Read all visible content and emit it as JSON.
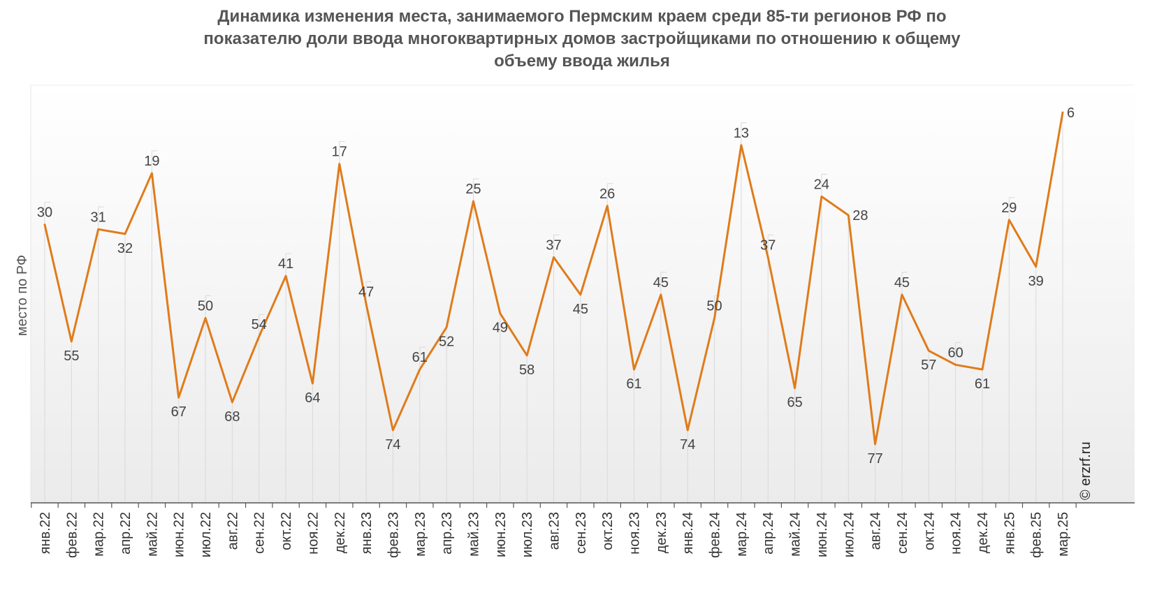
{
  "chart_data": {
    "type": "line",
    "title": [
      "Динамика изменения места, занимаемого Пермским краем среди 85-ти регионов РФ по",
      "показателю доли ввода многоквартирных домов застройщиками по отношению к общему",
      "объему ввода жилья"
    ],
    "ylabel": "место по РФ",
    "y_axis": "inverted",
    "ylim": [
      90,
      1
    ],
    "grid": "vertical drop lines at each point",
    "categories": [
      "янв.22",
      "фев.22",
      "мар.22",
      "апр.22",
      "май.22",
      "июн.22",
      "июл.22",
      "авг.22",
      "сен.22",
      "окт.22",
      "ноя.22",
      "дек.22",
      "янв.23",
      "фев.23",
      "мар.23",
      "апр.23",
      "май.23",
      "июн.23",
      "июл.23",
      "авг.23",
      "сен.23",
      "окт.23",
      "ноя.23",
      "дек.23",
      "янв.24",
      "фев.24",
      "мар.24",
      "апр.24",
      "май.24",
      "июн.24",
      "июл.24",
      "авг.24",
      "сен.24",
      "окт.24",
      "ноя.24",
      "дек.24",
      "янв.25",
      "фев.25",
      "мар.25"
    ],
    "series": [
      {
        "values": [
          30,
          55,
          31,
          32,
          19,
          67,
          50,
          68,
          54,
          41,
          64,
          17,
          47,
          74,
          61,
          52,
          25,
          49,
          58,
          37,
          45,
          26,
          61,
          45,
          74,
          50,
          13,
          37,
          65,
          24,
          28,
          77,
          45,
          57,
          60,
          61,
          29,
          39,
          6
        ],
        "label_pos": [
          "above",
          "below",
          "above",
          "below",
          "above",
          "below",
          "above",
          "below",
          "above",
          "above",
          "below",
          "above",
          "above",
          "below",
          "above",
          "below",
          "above",
          "below",
          "below",
          "above",
          "below",
          "above",
          "below",
          "above",
          "below",
          "above",
          "above",
          "above",
          "below",
          "above",
          "right",
          "below",
          "above",
          "below",
          "above",
          "below",
          "above",
          "below",
          "right"
        ],
        "color": "#e07b1a"
      }
    ],
    "source": "© erzrf.ru"
  }
}
